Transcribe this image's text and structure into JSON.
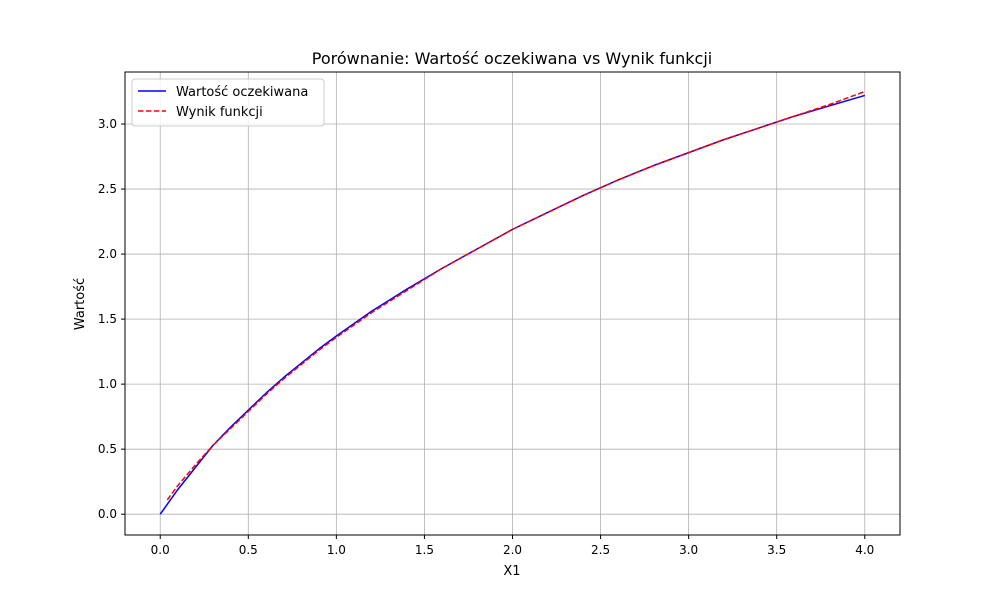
{
  "chart_data": {
    "type": "line",
    "title": "Porównanie: Wartość oczekiwana vs Wynik funkcji",
    "xlabel": "X1",
    "ylabel": "Wartość",
    "xlim": [
      -0.2,
      4.2
    ],
    "ylim": [
      -0.16,
      3.4
    ],
    "xticks": [
      "0.0",
      "0.5",
      "1.0",
      "1.5",
      "2.0",
      "2.5",
      "3.0",
      "3.5",
      "4.0"
    ],
    "yticks": [
      "0.0",
      "0.5",
      "1.0",
      "1.5",
      "2.0",
      "2.5",
      "3.0"
    ],
    "grid": true,
    "legend_position": "top-left",
    "series": [
      {
        "name": "Wartość oczekiwana",
        "color": "#0000ff",
        "dash": "solid",
        "x": [
          0.0,
          0.1,
          0.2,
          0.3,
          0.4,
          0.5,
          0.6,
          0.7,
          0.8,
          0.9,
          1.0,
          1.2,
          1.4,
          1.6,
          1.8,
          2.0,
          2.2,
          2.4,
          2.6,
          2.8,
          3.0,
          3.2,
          3.4,
          3.6,
          3.8,
          4.0
        ],
        "y": [
          0.0,
          0.19,
          0.36,
          0.53,
          0.67,
          0.8,
          0.93,
          1.05,
          1.16,
          1.27,
          1.37,
          1.56,
          1.73,
          1.89,
          2.04,
          2.19,
          2.32,
          2.45,
          2.57,
          2.68,
          2.78,
          2.88,
          2.97,
          3.06,
          3.14,
          3.22
        ]
      },
      {
        "name": "Wynik funkcji",
        "color": "#ff0000",
        "dash": "dashed",
        "x": [
          0.04,
          0.1,
          0.2,
          0.3,
          0.4,
          0.5,
          0.6,
          0.7,
          0.8,
          0.9,
          1.0,
          1.2,
          1.4,
          1.6,
          1.8,
          2.0,
          2.2,
          2.4,
          2.6,
          2.8,
          3.0,
          3.2,
          3.4,
          3.6,
          3.8,
          4.0
        ],
        "y": [
          0.11,
          0.22,
          0.38,
          0.53,
          0.66,
          0.79,
          0.92,
          1.04,
          1.15,
          1.26,
          1.36,
          1.55,
          1.72,
          1.89,
          2.04,
          2.19,
          2.32,
          2.45,
          2.57,
          2.68,
          2.78,
          2.88,
          2.97,
          3.06,
          3.15,
          3.25
        ]
      }
    ]
  }
}
